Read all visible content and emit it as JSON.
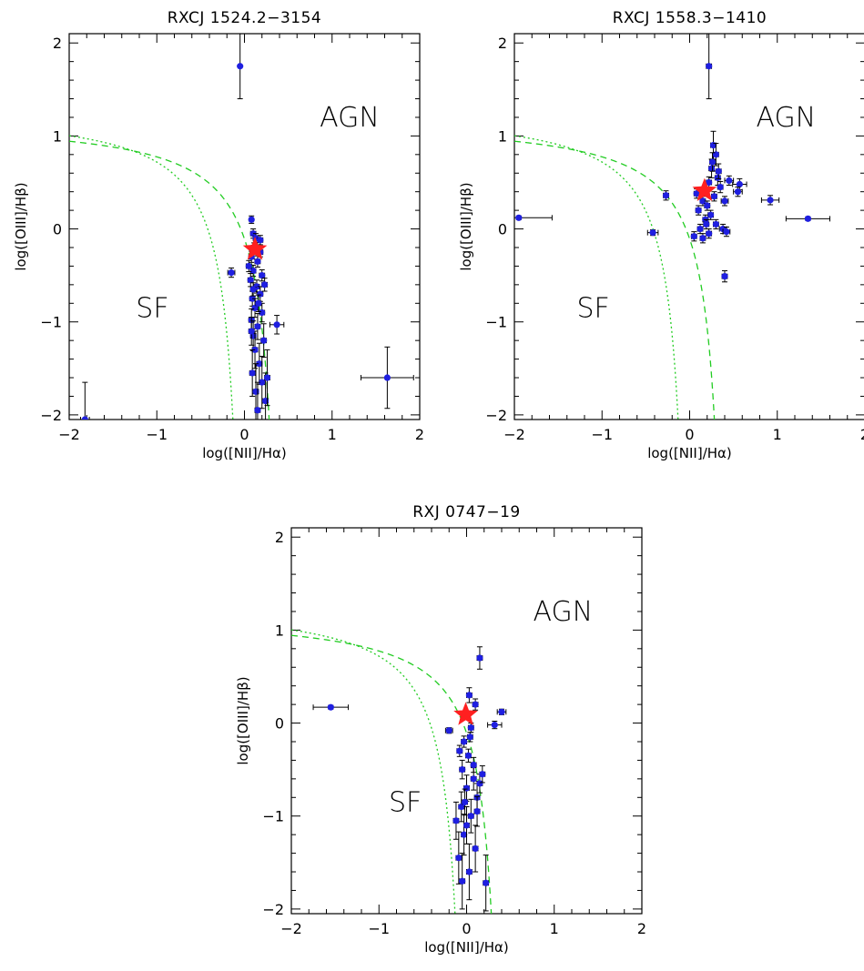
{
  "chart_data": [
    {
      "type": "scatter",
      "title": "RXCJ 1524.2−3154",
      "xlabel": "log([NII]/Hα)",
      "ylabel": "log([OIII]/Hβ)",
      "xlim": [
        -2,
        2
      ],
      "ylim": [
        -2.05,
        2.1
      ],
      "xticks": [
        "−2",
        "−1",
        "0",
        "1",
        "2"
      ],
      "yticks": [
        "−2",
        "−1",
        "0",
        "1",
        "2"
      ],
      "regions": [
        {
          "label": "AGN",
          "x": 1.2,
          "y": 1.1
        },
        {
          "label": "SF",
          "x": -1.05,
          "y": -0.95
        }
      ],
      "star": {
        "x": 0.12,
        "y": -0.22
      },
      "points": [
        {
          "x": -0.05,
          "y": 1.75,
          "ex": 0.0,
          "ey": 0.35
        },
        {
          "x": 1.63,
          "y": -1.6,
          "ex": 0.3,
          "ey": 0.33
        },
        {
          "x": -1.82,
          "y": -2.05,
          "ex": 0.05,
          "ey": 0.4
        },
        {
          "x": -0.15,
          "y": -0.47,
          "ex": 0.04,
          "ey": 0.05
        },
        {
          "x": 0.37,
          "y": -1.03,
          "ex": 0.08,
          "ey": 0.1
        },
        {
          "x": 0.08,
          "y": 0.1,
          "ex": 0.02,
          "ey": 0.04
        },
        {
          "x": 0.1,
          "y": -0.05,
          "ex": 0.03,
          "ey": 0.05
        },
        {
          "x": 0.13,
          "y": -0.1,
          "ex": 0.03,
          "ey": 0.05
        },
        {
          "x": 0.18,
          "y": -0.12,
          "ex": 0.03,
          "ey": 0.05
        },
        {
          "x": 0.08,
          "y": -0.3,
          "ex": 0.03,
          "ey": 0.06
        },
        {
          "x": 0.15,
          "y": -0.35,
          "ex": 0.03,
          "ey": 0.06
        },
        {
          "x": 0.1,
          "y": -0.45,
          "ex": 0.03,
          "ey": 0.06
        },
        {
          "x": 0.2,
          "y": -0.5,
          "ex": 0.03,
          "ey": 0.06
        },
        {
          "x": 0.07,
          "y": -0.55,
          "ex": 0.03,
          "ey": 0.07
        },
        {
          "x": 0.14,
          "y": -0.62,
          "ex": 0.03,
          "ey": 0.07
        },
        {
          "x": 0.18,
          "y": -0.7,
          "ex": 0.03,
          "ey": 0.08
        },
        {
          "x": 0.09,
          "y": -0.75,
          "ex": 0.03,
          "ey": 0.08
        },
        {
          "x": 0.12,
          "y": -0.85,
          "ex": 0.03,
          "ey": 0.1
        },
        {
          "x": 0.2,
          "y": -0.9,
          "ex": 0.03,
          "ey": 0.1
        },
        {
          "x": 0.08,
          "y": -0.98,
          "ex": 0.03,
          "ey": 0.12
        },
        {
          "x": 0.15,
          "y": -1.05,
          "ex": 0.03,
          "ey": 0.14
        },
        {
          "x": 0.1,
          "y": -1.15,
          "ex": 0.03,
          "ey": 0.16
        },
        {
          "x": 0.22,
          "y": -1.2,
          "ex": 0.03,
          "ey": 0.18
        },
        {
          "x": 0.12,
          "y": -1.3,
          "ex": 0.03,
          "ey": 0.2
        },
        {
          "x": 0.17,
          "y": -1.45,
          "ex": 0.03,
          "ey": 0.22
        },
        {
          "x": 0.09,
          "y": -1.55,
          "ex": 0.03,
          "ey": 0.25
        },
        {
          "x": 0.2,
          "y": -1.65,
          "ex": 0.03,
          "ey": 0.28
        },
        {
          "x": 0.13,
          "y": -1.75,
          "ex": 0.03,
          "ey": 0.3
        },
        {
          "x": 0.24,
          "y": -1.85,
          "ex": 0.03,
          "ey": 0.3
        },
        {
          "x": 0.15,
          "y": -1.95,
          "ex": 0.03,
          "ey": 0.3
        },
        {
          "x": 0.08,
          "y": -1.1,
          "ex": 0.03,
          "ey": 0.15
        },
        {
          "x": 0.18,
          "y": -0.25,
          "ex": 0.03,
          "ey": 0.05
        },
        {
          "x": 0.11,
          "y": -0.2,
          "ex": 0.03,
          "ey": 0.05
        },
        {
          "x": 0.16,
          "y": -0.8,
          "ex": 0.03,
          "ey": 0.09
        },
        {
          "x": 0.05,
          "y": -0.4,
          "ex": 0.03,
          "ey": 0.06
        },
        {
          "x": 0.23,
          "y": -0.6,
          "ex": 0.03,
          "ey": 0.07
        },
        {
          "x": 0.26,
          "y": -1.6,
          "ex": 0.03,
          "ey": 0.3
        },
        {
          "x": 0.1,
          "y": -0.65,
          "ex": 0.03,
          "ey": 0.07
        }
      ]
    },
    {
      "type": "scatter",
      "title": "RXCJ 1558.3−1410",
      "xlabel": "log([NII]/Hα)",
      "ylabel": "log([OIII]/Hβ)",
      "xlim": [
        -2,
        2
      ],
      "ylim": [
        -2.05,
        2.1
      ],
      "xticks": [
        "−2",
        "−1",
        "0",
        "1",
        "2"
      ],
      "yticks": [
        "−2",
        "−1",
        "0",
        "1",
        "2"
      ],
      "regions": [
        {
          "label": "AGN",
          "x": 1.1,
          "y": 1.1
        },
        {
          "label": "SF",
          "x": -1.1,
          "y": -0.95
        }
      ],
      "star": {
        "x": 0.17,
        "y": 0.41
      },
      "points": [
        {
          "x": -1.95,
          "y": 0.12,
          "ex": 0.38,
          "ey": 0.02
        },
        {
          "x": -0.42,
          "y": -0.04,
          "ex": 0.06,
          "ey": 0.03
        },
        {
          "x": 0.22,
          "y": 1.75,
          "ex": 0.03,
          "ey": 0.35
        },
        {
          "x": 1.35,
          "y": 0.11,
          "ex": 0.25,
          "ey": 0.02
        },
        {
          "x": 0.92,
          "y": 0.31,
          "ex": 0.1,
          "ey": 0.05
        },
        {
          "x": 0.57,
          "y": 0.48,
          "ex": 0.08,
          "ey": 0.06
        },
        {
          "x": 0.4,
          "y": -0.51,
          "ex": 0.03,
          "ey": 0.06
        },
        {
          "x": -0.27,
          "y": 0.36,
          "ex": 0.03,
          "ey": 0.05
        },
        {
          "x": 0.27,
          "y": 0.9,
          "ex": 0.03,
          "ey": 0.15
        },
        {
          "x": 0.3,
          "y": 0.8,
          "ex": 0.03,
          "ey": 0.12
        },
        {
          "x": 0.25,
          "y": 0.65,
          "ex": 0.03,
          "ey": 0.1
        },
        {
          "x": 0.32,
          "y": 0.55,
          "ex": 0.03,
          "ey": 0.08
        },
        {
          "x": 0.22,
          "y": 0.5,
          "ex": 0.03,
          "ey": 0.06
        },
        {
          "x": 0.35,
          "y": 0.45,
          "ex": 0.03,
          "ey": 0.06
        },
        {
          "x": 0.28,
          "y": 0.35,
          "ex": 0.03,
          "ey": 0.05
        },
        {
          "x": 0.4,
          "y": 0.3,
          "ex": 0.04,
          "ey": 0.05
        },
        {
          "x": 0.15,
          "y": 0.3,
          "ex": 0.03,
          "ey": 0.05
        },
        {
          "x": 0.2,
          "y": 0.25,
          "ex": 0.03,
          "ey": 0.05
        },
        {
          "x": 0.1,
          "y": 0.2,
          "ex": 0.03,
          "ey": 0.05
        },
        {
          "x": 0.24,
          "y": 0.15,
          "ex": 0.03,
          "ey": 0.05
        },
        {
          "x": 0.18,
          "y": 0.1,
          "ex": 0.03,
          "ey": 0.05
        },
        {
          "x": 0.3,
          "y": 0.05,
          "ex": 0.03,
          "ey": 0.05
        },
        {
          "x": 0.12,
          "y": 0.0,
          "ex": 0.03,
          "ey": 0.05
        },
        {
          "x": 0.22,
          "y": -0.05,
          "ex": 0.03,
          "ey": 0.05
        },
        {
          "x": 0.05,
          "y": -0.08,
          "ex": 0.03,
          "ey": 0.05
        },
        {
          "x": 0.38,
          "y": 0.0,
          "ex": 0.04,
          "ey": 0.05
        },
        {
          "x": 0.42,
          "y": -0.03,
          "ex": 0.04,
          "ey": 0.05
        },
        {
          "x": 0.15,
          "y": -0.1,
          "ex": 0.03,
          "ey": 0.05
        },
        {
          "x": 0.55,
          "y": 0.4,
          "ex": 0.05,
          "ey": 0.05
        },
        {
          "x": 0.45,
          "y": 0.52,
          "ex": 0.05,
          "ey": 0.05
        },
        {
          "x": 0.08,
          "y": 0.38,
          "ex": 0.03,
          "ey": 0.05
        },
        {
          "x": 0.26,
          "y": 0.72,
          "ex": 0.03,
          "ey": 0.1
        },
        {
          "x": 0.33,
          "y": 0.62,
          "ex": 0.03,
          "ey": 0.08
        },
        {
          "x": 0.19,
          "y": 0.05,
          "ex": 0.03,
          "ey": 0.05
        }
      ]
    },
    {
      "type": "scatter",
      "title": "RXJ 0747−19",
      "xlabel": "log([NII]/Hα)",
      "ylabel": "log([OIII]/Hβ)",
      "xlim": [
        -2,
        2
      ],
      "ylim": [
        -2.05,
        2.1
      ],
      "xticks": [
        "−2",
        "−1",
        "0",
        "1",
        "2"
      ],
      "yticks": [
        "−2",
        "−1",
        "0",
        "1",
        "2"
      ],
      "regions": [
        {
          "label": "AGN",
          "x": 1.1,
          "y": 1.1
        },
        {
          "label": "SF",
          "x": -0.7,
          "y": -0.95
        }
      ],
      "star": {
        "x": -0.01,
        "y": 0.09
      },
      "points": [
        {
          "x": -1.55,
          "y": 0.17,
          "ex": 0.2,
          "ey": 0.02
        },
        {
          "x": 0.15,
          "y": 0.7,
          "ex": 0.03,
          "ey": 0.12
        },
        {
          "x": 0.4,
          "y": 0.12,
          "ex": 0.05,
          "ey": 0.03
        },
        {
          "x": 0.32,
          "y": -0.02,
          "ex": 0.08,
          "ey": 0.04
        },
        {
          "x": -0.2,
          "y": -0.08,
          "ex": 0.04,
          "ey": 0.03
        },
        {
          "x": 0.03,
          "y": 0.3,
          "ex": 0.03,
          "ey": 0.08
        },
        {
          "x": 0.1,
          "y": 0.2,
          "ex": 0.03,
          "ey": 0.06
        },
        {
          "x": 0.05,
          "y": -0.05,
          "ex": 0.03,
          "ey": 0.05
        },
        {
          "x": -0.03,
          "y": -0.2,
          "ex": 0.03,
          "ey": 0.06
        },
        {
          "x": 0.02,
          "y": -0.35,
          "ex": 0.03,
          "ey": 0.07
        },
        {
          "x": -0.05,
          "y": -0.5,
          "ex": 0.03,
          "ey": 0.1
        },
        {
          "x": 0.08,
          "y": -0.6,
          "ex": 0.03,
          "ey": 0.12
        },
        {
          "x": 0.0,
          "y": -0.7,
          "ex": 0.03,
          "ey": 0.14
        },
        {
          "x": 0.12,
          "y": -0.8,
          "ex": 0.03,
          "ey": 0.15
        },
        {
          "x": -0.06,
          "y": -0.9,
          "ex": 0.03,
          "ey": 0.16
        },
        {
          "x": 0.05,
          "y": -1.0,
          "ex": 0.03,
          "ey": 0.18
        },
        {
          "x": -0.12,
          "y": -1.05,
          "ex": 0.03,
          "ey": 0.2
        },
        {
          "x": -0.03,
          "y": -1.2,
          "ex": 0.03,
          "ey": 0.22
        },
        {
          "x": 0.1,
          "y": -1.35,
          "ex": 0.03,
          "ey": 0.25
        },
        {
          "x": -0.09,
          "y": -1.45,
          "ex": 0.03,
          "ey": 0.28
        },
        {
          "x": 0.03,
          "y": -1.6,
          "ex": 0.03,
          "ey": 0.3
        },
        {
          "x": -0.05,
          "y": -1.7,
          "ex": 0.03,
          "ey": 0.3
        },
        {
          "x": 0.22,
          "y": -1.72,
          "ex": 0.03,
          "ey": 0.3
        },
        {
          "x": 0.08,
          "y": -0.45,
          "ex": 0.03,
          "ey": 0.08
        },
        {
          "x": 0.15,
          "y": -0.65,
          "ex": 0.03,
          "ey": 0.1
        },
        {
          "x": -0.08,
          "y": -0.3,
          "ex": 0.03,
          "ey": 0.06
        },
        {
          "x": 0.04,
          "y": -0.15,
          "ex": 0.03,
          "ey": 0.05
        },
        {
          "x": 0.12,
          "y": -0.95,
          "ex": 0.03,
          "ey": 0.16
        },
        {
          "x": -0.02,
          "y": -0.85,
          "ex": 0.03,
          "ey": 0.14
        },
        {
          "x": 0.18,
          "y": -0.55,
          "ex": 0.03,
          "ey": 0.09
        },
        {
          "x": 0.0,
          "y": -1.1,
          "ex": 0.03,
          "ey": 0.2
        }
      ]
    }
  ]
}
